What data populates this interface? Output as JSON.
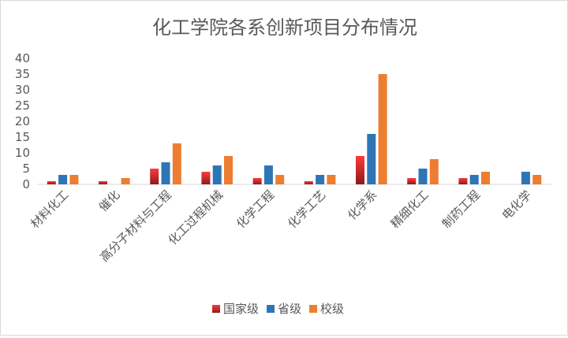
{
  "chart_data": {
    "type": "bar",
    "title": "化工学院各系创新项目分布情况",
    "categories": [
      "材料化工",
      "催化",
      "高分子材料与工程",
      "化工过程机械",
      "化学工程",
      "化学工艺",
      "化学系",
      "精细化工",
      "制药工程",
      "电化学"
    ],
    "series": [
      {
        "name": "国家级",
        "color": "#e0262b",
        "values": [
          1,
          1,
          5,
          4,
          2,
          1,
          9,
          2,
          2,
          0
        ]
      },
      {
        "name": "省级",
        "color": "#2e75b6",
        "values": [
          3,
          0,
          7,
          6,
          6,
          3,
          16,
          5,
          3,
          4
        ]
      },
      {
        "name": "校级",
        "color": "#ed7d31",
        "values": [
          3,
          2,
          13,
          9,
          3,
          3,
          35,
          8,
          4,
          3
        ]
      }
    ],
    "yticks": [
      0,
      5,
      10,
      15,
      20,
      25,
      30,
      35,
      40
    ],
    "ylim": [
      0,
      40
    ],
    "grid": false,
    "legend_position": "bottom"
  }
}
